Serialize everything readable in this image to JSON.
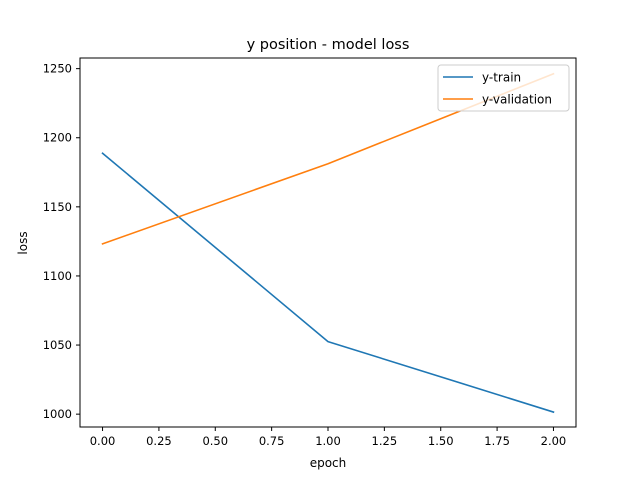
{
  "chart_data": {
    "type": "line",
    "title": "y position - model loss",
    "xlabel": "epoch",
    "ylabel": "loss",
    "x": [
      0,
      1,
      2
    ],
    "xlim": [
      -0.1,
      2.1
    ],
    "ylim": [
      990.7,
      1257.7
    ],
    "xticks": [
      0.0,
      0.25,
      0.5,
      0.75,
      1.0,
      1.25,
      1.5,
      1.75,
      2.0
    ],
    "xtick_labels": [
      "0.00",
      "0.25",
      "0.50",
      "0.75",
      "1.00",
      "1.25",
      "1.50",
      "1.75",
      "2.00"
    ],
    "yticks": [
      1000,
      1050,
      1100,
      1150,
      1200,
      1250
    ],
    "ytick_labels": [
      "1000",
      "1050",
      "1100",
      "1150",
      "1200",
      "1250"
    ],
    "grid": false,
    "legend_position": "top-right",
    "series": [
      {
        "name": "y-train",
        "color": "#1f77b4",
        "values": [
          1188.8,
          1052.5,
          1001.5
        ]
      },
      {
        "name": "y-validation",
        "color": "#ff7f0e",
        "values": [
          1123.2,
          1181.2,
          1246.3
        ]
      }
    ]
  }
}
